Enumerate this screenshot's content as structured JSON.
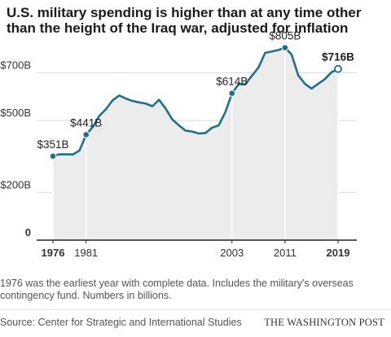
{
  "header": {
    "title": "U.S. military spending is higher than at any time other than the height of the Iraq war, adjusted for inflation"
  },
  "footer": {
    "note": "1976 was the earliest year with complete data. Includes the military's overseas contingency fund. Numbers in billions.",
    "source": "Source: Center for Strategic and International Studies",
    "brand": "THE WASHINGTON POST"
  },
  "colors": {
    "line": "#1f6f8b",
    "area": "#ececec",
    "grid": "#d9d9d9",
    "axis": "#222222"
  },
  "chart_data": {
    "type": "area",
    "title": "U.S. military spending is higher than at any time other than the height of the Iraq war, adjusted for inflation",
    "xlabel": "",
    "ylabel": "",
    "xlim": [
      1976,
      2019
    ],
    "ylim": [
      0,
      800
    ],
    "grid": true,
    "y_ticks": [
      {
        "value": 0,
        "label": "0"
      },
      {
        "value": 200,
        "label": "$200B"
      },
      {
        "value": 500,
        "label": "$500B"
      },
      {
        "value": 700,
        "label": "$700B"
      }
    ],
    "x_ticks": [
      {
        "value": 1976,
        "label": "1976",
        "bold": true
      },
      {
        "value": 1981,
        "label": "1981",
        "bold": false
      },
      {
        "value": 2003,
        "label": "2003",
        "bold": false
      },
      {
        "value": 2011,
        "label": "2011",
        "bold": false
      },
      {
        "value": 2019,
        "label": "2019",
        "bold": true
      }
    ],
    "series": [
      {
        "x": [
          1976,
          1977,
          1978,
          1979,
          1980,
          1981,
          1982,
          1983,
          1984,
          1985,
          1986,
          1987,
          1988,
          1989,
          1990,
          1991,
          1992,
          1993,
          1994,
          1995,
          1996,
          1997,
          1998,
          1999,
          2000,
          2001,
          2002,
          2003,
          2004,
          2005,
          2006,
          2007,
          2008,
          2009,
          2010,
          2011,
          2012,
          2013,
          2014,
          2015,
          2016,
          2017,
          2018,
          2019
        ],
        "values": [
          351,
          359,
          359,
          358,
          375,
          441,
          473,
          520,
          548,
          585,
          605,
          592,
          582,
          576,
          571,
          560,
          587,
          550,
          505,
          480,
          458,
          454,
          446,
          448,
          470,
          480,
          535,
          614,
          652,
          652,
          687,
          722,
          783,
          789,
          795,
          805,
          776,
          689,
          654,
          634,
          654,
          673,
          702,
          716
        ]
      }
    ],
    "annotations": [
      {
        "x": 1976,
        "y": 351,
        "label": "$351B",
        "bold": false,
        "hollow": false
      },
      {
        "x": 1981,
        "y": 441,
        "label": "$441B",
        "bold": false,
        "hollow": false
      },
      {
        "x": 2003,
        "y": 614,
        "label": "$614B",
        "bold": false,
        "hollow": false
      },
      {
        "x": 2011,
        "y": 805,
        "label": "$805B",
        "bold": false,
        "hollow": false
      },
      {
        "x": 2019,
        "y": 716,
        "label": "$716B",
        "bold": true,
        "hollow": true
      }
    ]
  }
}
